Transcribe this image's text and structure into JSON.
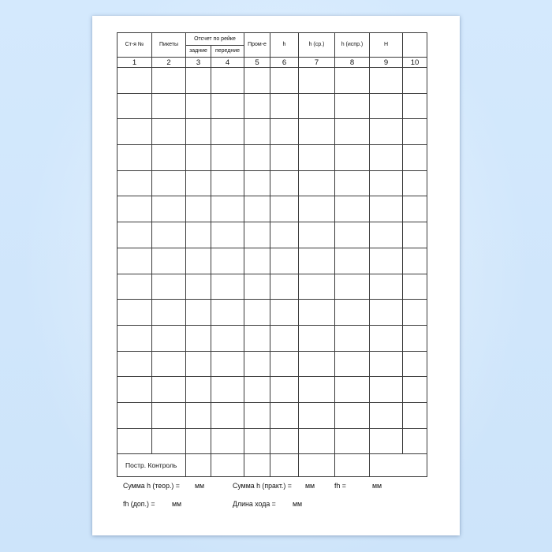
{
  "page": {
    "background_color": "#d2e8fc",
    "paper_color": "#ffffff",
    "border_color": "#3a3a3a"
  },
  "table": {
    "headers": {
      "station": "Ст-я №",
      "pickets": "Пикеты",
      "rod_readings": "Отсчет по рейке",
      "rear": "задние",
      "front": "передние",
      "intermediate": "Пром-е",
      "h": "h",
      "h_avg": "h (ср.)",
      "h_corr": "h (испр.)",
      "elevation": "Н",
      "last": ""
    },
    "column_numbers": [
      "1",
      "2",
      "3",
      "4",
      "5",
      "6",
      "7",
      "8",
      "9",
      "10"
    ],
    "body_row_count": 15,
    "body_columns": 10,
    "footer_label": "Постр. Контроль"
  },
  "summary": {
    "line1": [
      {
        "label": "Сумма h (теор.) =",
        "unit": "мм"
      },
      {
        "label": "Сумма h (практ.) =",
        "unit": "мм"
      },
      {
        "label": "fh =",
        "unit": "мм"
      }
    ],
    "line2": [
      {
        "label": "fh (доп.) =",
        "unit": "мм"
      },
      {
        "label": "Длина хода =",
        "unit": "мм"
      }
    ]
  }
}
